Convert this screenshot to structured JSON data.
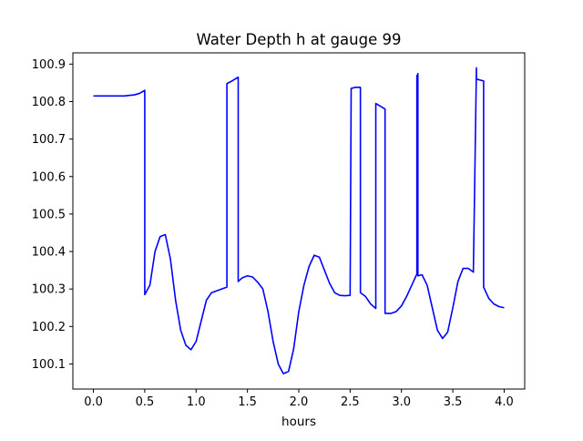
{
  "chart_data": {
    "type": "line",
    "title": "Water Depth h at gauge 99",
    "xlabel": "hours",
    "ylabel": "",
    "xlim": [
      -0.2,
      4.2
    ],
    "ylim": [
      100.033,
      100.93
    ],
    "xticks": [
      0.0,
      0.5,
      1.0,
      1.5,
      2.0,
      2.5,
      3.0,
      3.5,
      4.0
    ],
    "xtick_labels": [
      "0.0",
      "0.5",
      "1.0",
      "1.5",
      "2.0",
      "2.5",
      "3.0",
      "3.5",
      "4.0"
    ],
    "yticks": [
      100.1,
      100.2,
      100.3,
      100.4,
      100.5,
      100.6,
      100.7,
      100.8,
      100.9
    ],
    "ytick_labels": [
      "100.1",
      "100.2",
      "100.3",
      "100.4",
      "100.5",
      "100.6",
      "100.7",
      "100.8",
      "100.9"
    ],
    "grid": false,
    "series": [
      {
        "color": "#0000ff",
        "x": [
          0.0,
          0.1,
          0.2,
          0.3,
          0.4,
          0.45,
          0.5,
          0.5,
          0.55,
          0.6,
          0.65,
          0.7,
          0.75,
          0.8,
          0.85,
          0.9,
          0.95,
          1.0,
          1.05,
          1.1,
          1.15,
          1.2,
          1.25,
          1.3,
          1.3,
          1.35,
          1.41,
          1.41,
          1.45,
          1.5,
          1.55,
          1.6,
          1.65,
          1.7,
          1.75,
          1.8,
          1.85,
          1.9,
          1.95,
          2.0,
          2.05,
          2.1,
          2.15,
          2.2,
          2.25,
          2.3,
          2.35,
          2.4,
          2.45,
          2.5,
          2.51,
          2.51,
          2.55,
          2.6,
          2.6,
          2.65,
          2.7,
          2.75,
          2.75,
          2.84,
          2.84,
          2.9,
          2.95,
          3.0,
          3.05,
          3.1,
          3.15,
          3.15,
          3.155,
          3.155,
          3.16,
          3.16,
          3.2,
          3.25,
          3.3,
          3.35,
          3.4,
          3.45,
          3.5,
          3.55,
          3.6,
          3.65,
          3.7,
          3.73,
          3.73,
          3.8,
          3.8,
          3.85,
          3.9,
          3.95,
          4.0
        ],
        "y": [
          100.815,
          100.815,
          100.815,
          100.815,
          100.818,
          100.822,
          100.83,
          100.285,
          100.31,
          100.4,
          100.44,
          100.445,
          100.38,
          100.27,
          100.19,
          100.15,
          100.138,
          100.16,
          100.215,
          100.27,
          100.29,
          100.295,
          100.3,
          100.305,
          100.848,
          100.855,
          100.865,
          100.32,
          100.33,
          100.335,
          100.332,
          100.318,
          100.3,
          100.24,
          100.16,
          100.1,
          100.074,
          100.08,
          100.14,
          100.24,
          100.31,
          100.36,
          100.39,
          100.385,
          100.35,
          100.315,
          100.29,
          100.283,
          100.282,
          100.283,
          100.83,
          100.835,
          100.838,
          100.838,
          100.29,
          100.28,
          100.26,
          100.248,
          100.795,
          100.78,
          100.235,
          100.235,
          100.24,
          100.255,
          100.28,
          100.31,
          100.34,
          100.87,
          100.87,
          100.34,
          100.875,
          100.335,
          100.338,
          100.31,
          100.25,
          100.19,
          100.168,
          100.185,
          100.25,
          100.32,
          100.355,
          100.355,
          100.345,
          100.89,
          100.86,
          100.855,
          100.305,
          100.275,
          100.26,
          100.253,
          100.25
        ]
      }
    ]
  }
}
